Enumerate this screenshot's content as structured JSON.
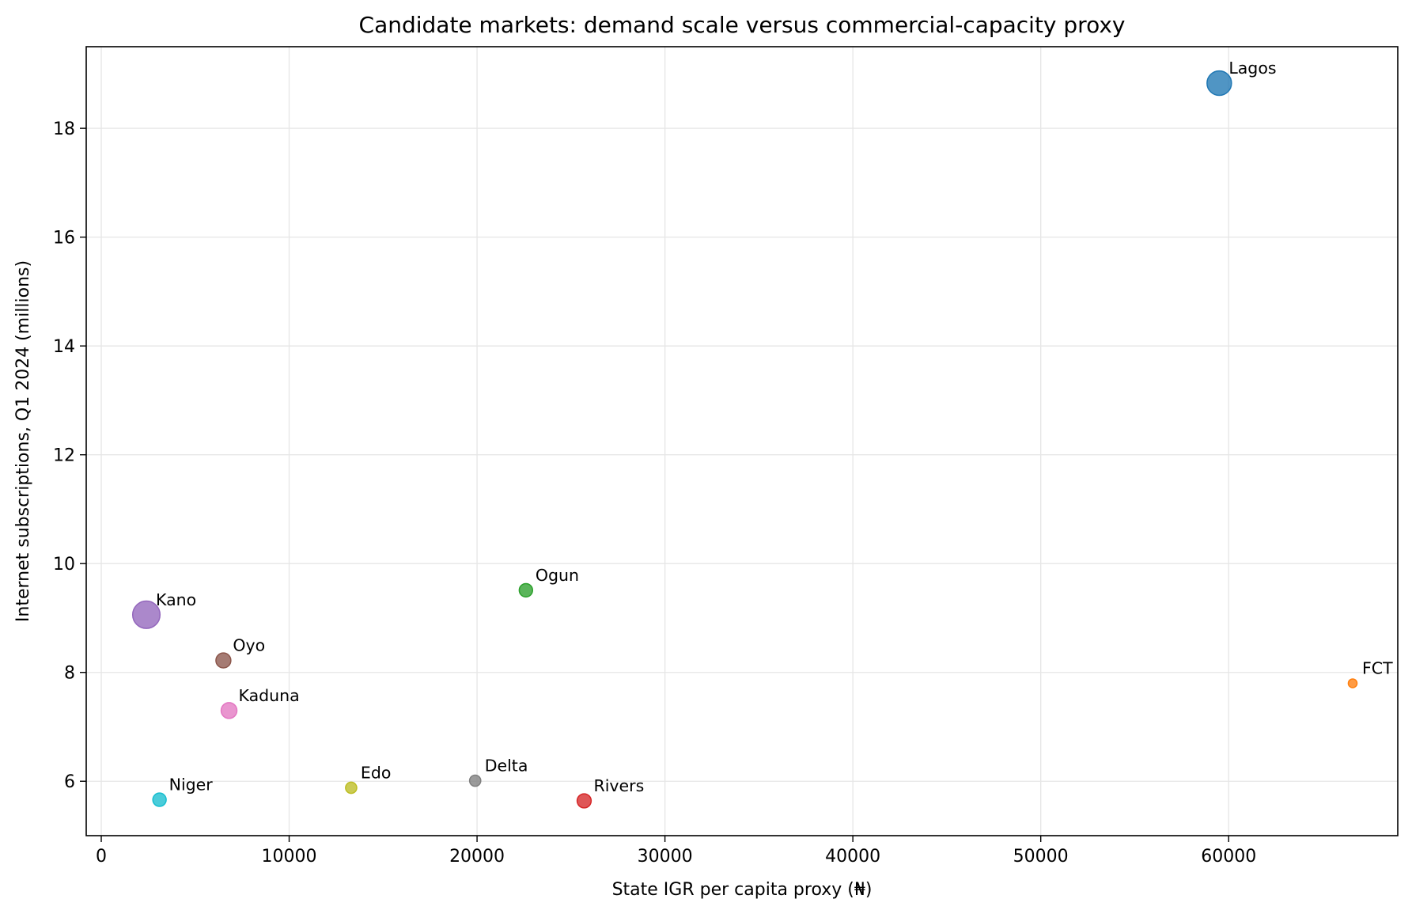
{
  "chart_data": {
    "type": "scatter",
    "title": "Candidate markets: demand scale versus commercial-capacity proxy",
    "xlabel": "State IGR per capita proxy (₦)",
    "ylabel": "Internet subscriptions, Q1 2024 (millions)",
    "xlim": [
      -800,
      69000
    ],
    "ylim": [
      5.0,
      19.5
    ],
    "xticks": [
      0,
      10000,
      20000,
      30000,
      40000,
      50000,
      60000
    ],
    "xtick_labels": [
      "0",
      "10000",
      "20000",
      "30000",
      "40000",
      "50000",
      "60000"
    ],
    "yticks": [
      6,
      8,
      10,
      12,
      14,
      16,
      18
    ],
    "ytick_labels": [
      "6",
      "8",
      "10",
      "12",
      "14",
      "16",
      "18"
    ],
    "grid": true,
    "legend": "none",
    "points": [
      {
        "label": "Lagos",
        "x": 59500,
        "y": 18.83,
        "size": 22.9,
        "color": "#1f77b4"
      },
      {
        "label": "FCT",
        "x": 66600,
        "y": 7.8,
        "size": 8.2,
        "color": "#ff7f0e"
      },
      {
        "label": "Ogun",
        "x": 22600,
        "y": 9.51,
        "size": 12.5,
        "color": "#2ca02c"
      },
      {
        "label": "Rivers",
        "x": 25700,
        "y": 5.64,
        "size": 13.2,
        "color": "#d62728"
      },
      {
        "label": "Kano",
        "x": 2400,
        "y": 9.06,
        "size": 25.6,
        "color": "#9467bd"
      },
      {
        "label": "Oyo",
        "x": 6500,
        "y": 8.22,
        "size": 14.0,
        "color": "#8c564b"
      },
      {
        "label": "Kaduna",
        "x": 6800,
        "y": 7.3,
        "size": 14.8,
        "color": "#e377c2"
      },
      {
        "label": "Delta",
        "x": 19900,
        "y": 6.01,
        "size": 10.5,
        "color": "#7f7f7f"
      },
      {
        "label": "Edo",
        "x": 13300,
        "y": 5.88,
        "size": 10.5,
        "color": "#bcbd22"
      },
      {
        "label": "Niger",
        "x": 3100,
        "y": 5.66,
        "size": 12.5,
        "color": "#17becf"
      }
    ]
  }
}
